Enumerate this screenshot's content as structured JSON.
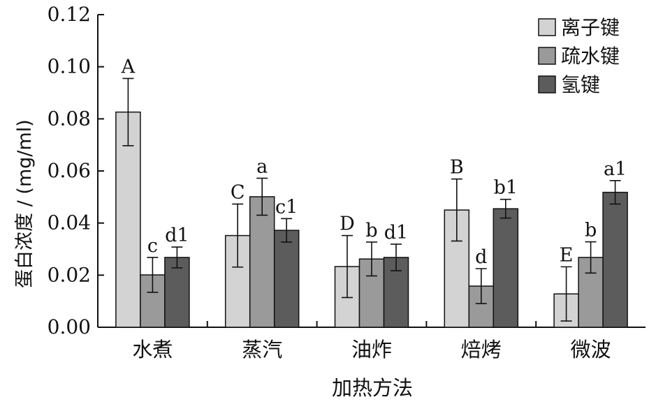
{
  "chart_data": {
    "type": "bar",
    "title": "",
    "xlabel": "加热方法",
    "ylabel": "蛋白浓度 / (mg/ml)",
    "ylim": [
      0,
      0.12
    ],
    "yticks": [
      "0.00",
      "0.02",
      "0.04",
      "0.06",
      "0.08",
      "0.10",
      "0.12"
    ],
    "categories": [
      "水煮",
      "蒸汽",
      "油炸",
      "焙烤",
      "微波"
    ],
    "legend_position": "top-right",
    "grid": false,
    "series": [
      {
        "name": "离子键",
        "color": "#d3d3d3",
        "values": [
          0.0826,
          0.0352,
          0.0233,
          0.045,
          0.0128
        ],
        "errors": [
          0.0129,
          0.0121,
          0.0119,
          0.0119,
          0.0104
        ],
        "labels": [
          "A",
          "C",
          "D",
          "B",
          "E"
        ]
      },
      {
        "name": "疏水键",
        "color": "#9a9a9a",
        "values": [
          0.0201,
          0.0501,
          0.0262,
          0.0158,
          0.0268
        ],
        "errors": [
          0.0067,
          0.0071,
          0.0065,
          0.0067,
          0.006
        ],
        "labels": [
          "c",
          "a",
          "b",
          "d",
          "b"
        ]
      },
      {
        "name": "氢键",
        "color": "#5c5c5c",
        "values": [
          0.0268,
          0.0372,
          0.0268,
          0.0455,
          0.0518
        ],
        "errors": [
          0.004,
          0.0045,
          0.0051,
          0.0036,
          0.0045
        ],
        "labels": [
          "d1",
          "c1",
          "d1",
          "b1",
          "a1"
        ]
      }
    ]
  }
}
